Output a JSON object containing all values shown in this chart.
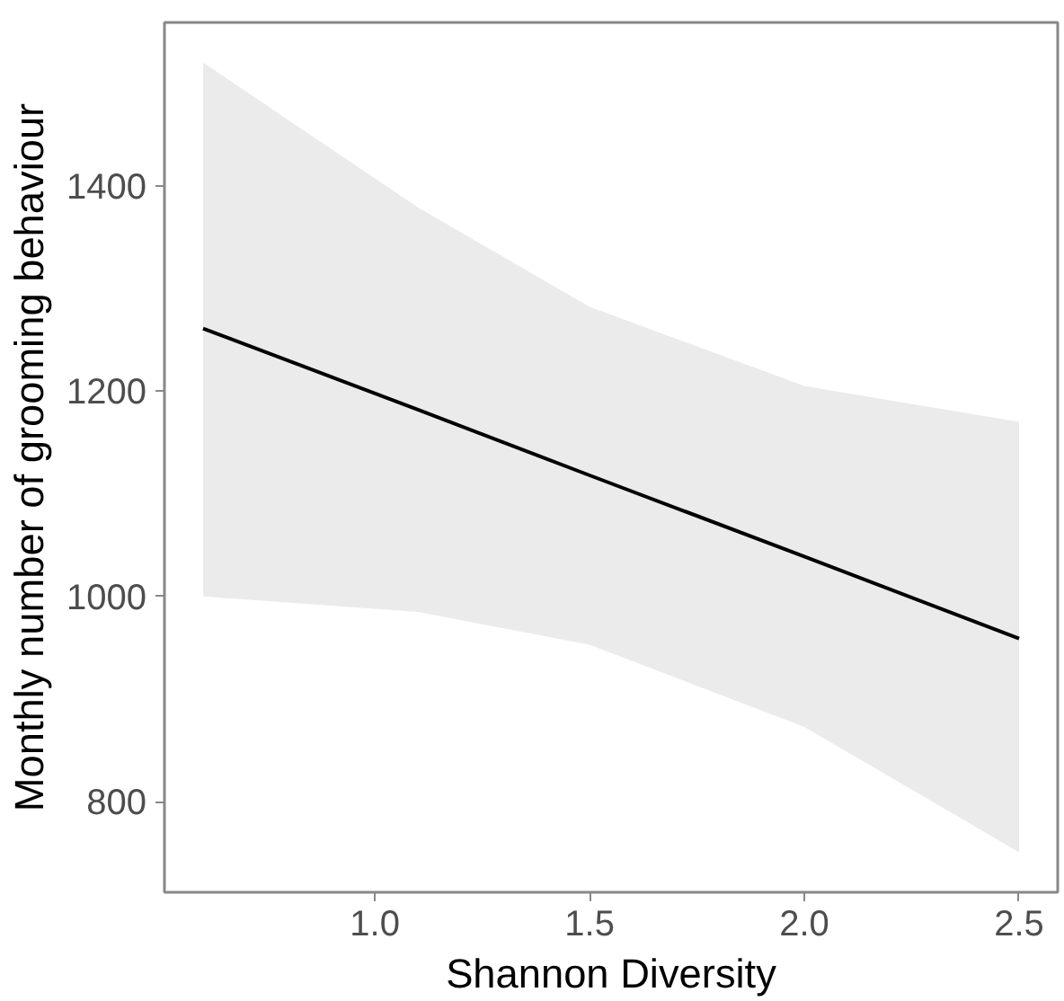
{
  "chart_data": {
    "type": "line",
    "xlabel": "Shannon Diversity",
    "ylabel": "Monthly number of grooming behaviour",
    "x": [
      0.6,
      1.1,
      1.5,
      2.0,
      2.5
    ],
    "series": [
      {
        "color": "#000000",
        "values": [
          1261,
          1182,
          1118,
          1039,
          959
        ],
        "lower": [
          1000,
          985,
          953,
          873,
          751
        ],
        "upper": [
          1520,
          1379,
          1282,
          1205,
          1170
        ]
      }
    ],
    "xlim": [
      0.51,
      2.59
    ],
    "ylim": [
      712,
      1559
    ],
    "xticks": [
      {
        "value": 1.0,
        "label": "1.0"
      },
      {
        "value": 1.5,
        "label": "1.5"
      },
      {
        "value": 2.0,
        "label": "2.0"
      },
      {
        "value": 2.5,
        "label": "2.5"
      }
    ],
    "yticks": [
      800,
      1000,
      1200,
      1400
    ],
    "grid": false,
    "marker": "none",
    "line_style": "solid"
  }
}
